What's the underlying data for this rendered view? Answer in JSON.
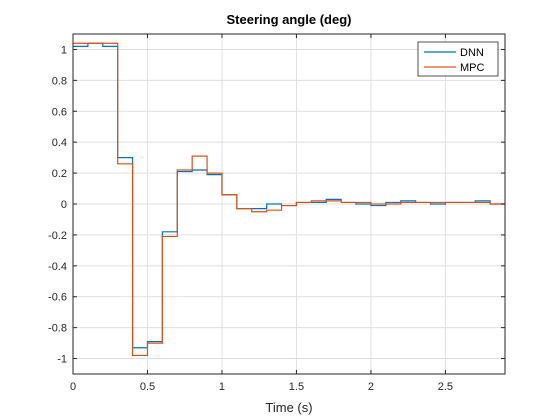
{
  "chart_data": {
    "type": "line",
    "title": "Steering angle (deg)",
    "xlabel": "Time (s)",
    "ylabel": "",
    "xlim": [
      0,
      2.9
    ],
    "ylim": [
      -1.1,
      1.1
    ],
    "xticks": [
      0,
      0.5,
      1,
      1.5,
      2,
      2.5
    ],
    "xtick_labels": [
      "0",
      "0.5",
      "1",
      "1.5",
      "2",
      "2.5"
    ],
    "yticks": [
      -1,
      -0.8,
      -0.6,
      -0.4,
      -0.2,
      0,
      0.2,
      0.4,
      0.6,
      0.8,
      1
    ],
    "ytick_labels": [
      "-1",
      "-0.8",
      "-0.6",
      "-0.4",
      "-0.2",
      "0",
      "0.2",
      "0.4",
      "0.6",
      "0.8",
      "1"
    ],
    "grid": true,
    "legend_position": "top-right",
    "step": true,
    "x": [
      0,
      0.1,
      0.2,
      0.3,
      0.4,
      0.5,
      0.6,
      0.7,
      0.8,
      0.9,
      1.0,
      1.1,
      1.2,
      1.3,
      1.4,
      1.5,
      1.6,
      1.7,
      1.8,
      1.9,
      2.0,
      2.1,
      2.2,
      2.3,
      2.4,
      2.5,
      2.6,
      2.7,
      2.8,
      2.9
    ],
    "series": [
      {
        "name": "DNN",
        "color": "#0072BD",
        "values": [
          1.02,
          1.04,
          1.02,
          0.3,
          -0.93,
          -0.89,
          -0.18,
          0.21,
          0.22,
          0.19,
          0.06,
          -0.03,
          -0.03,
          0.0,
          -0.01,
          0.01,
          0.01,
          0.03,
          0.01,
          0.0,
          -0.01,
          0.01,
          0.02,
          0.01,
          0.0,
          0.01,
          0.01,
          0.02,
          0.0,
          0.0
        ]
      },
      {
        "name": "MPC",
        "color": "#D95319",
        "values": [
          1.04,
          1.04,
          1.04,
          0.26,
          -0.98,
          -0.9,
          -0.21,
          0.22,
          0.31,
          0.2,
          0.06,
          -0.03,
          -0.05,
          -0.04,
          -0.01,
          0.01,
          0.02,
          0.02,
          0.01,
          0.01,
          0.0,
          0.0,
          0.01,
          0.01,
          0.01,
          0.01,
          0.01,
          0.01,
          0.0,
          0.0
        ]
      }
    ]
  }
}
